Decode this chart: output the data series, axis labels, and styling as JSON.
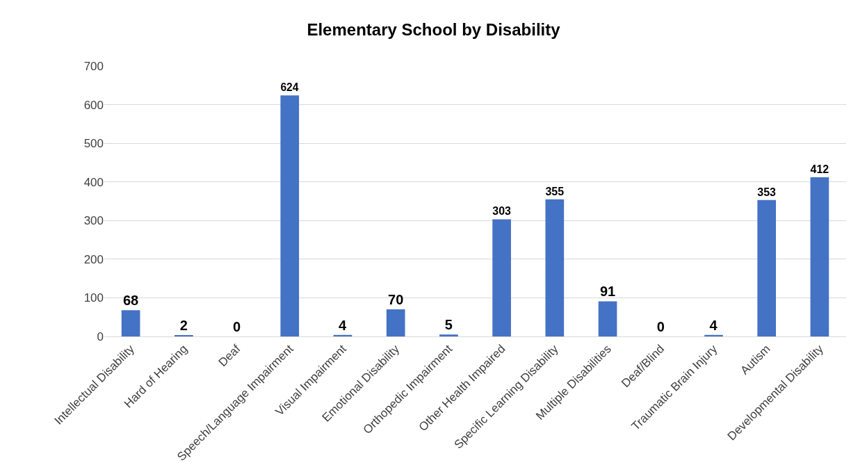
{
  "chart_data": {
    "type": "bar",
    "title": "Elementary School by Disability",
    "categories": [
      "Intellectual Disability",
      "Hard of Hearing",
      "Deaf",
      "Speech/Language Impairment",
      "Visual Impairment",
      "Emotional Disability",
      "Orthopedic Impairment",
      "Other Health Impaired",
      "Specific Learning Disability",
      "Multiple Disabilities",
      "Deaf/Blind",
      "Traumatic Brain Injury",
      "Autism",
      "Developmental Disability"
    ],
    "values": [
      68,
      2,
      0,
      624,
      4,
      70,
      5,
      303,
      355,
      91,
      0,
      4,
      353,
      412
    ],
    "color": "#4472c4",
    "ylim": [
      0,
      700
    ],
    "yticks": [
      0,
      100,
      200,
      300,
      400,
      500,
      600,
      700
    ],
    "grid": "y",
    "data_labels": true
  }
}
